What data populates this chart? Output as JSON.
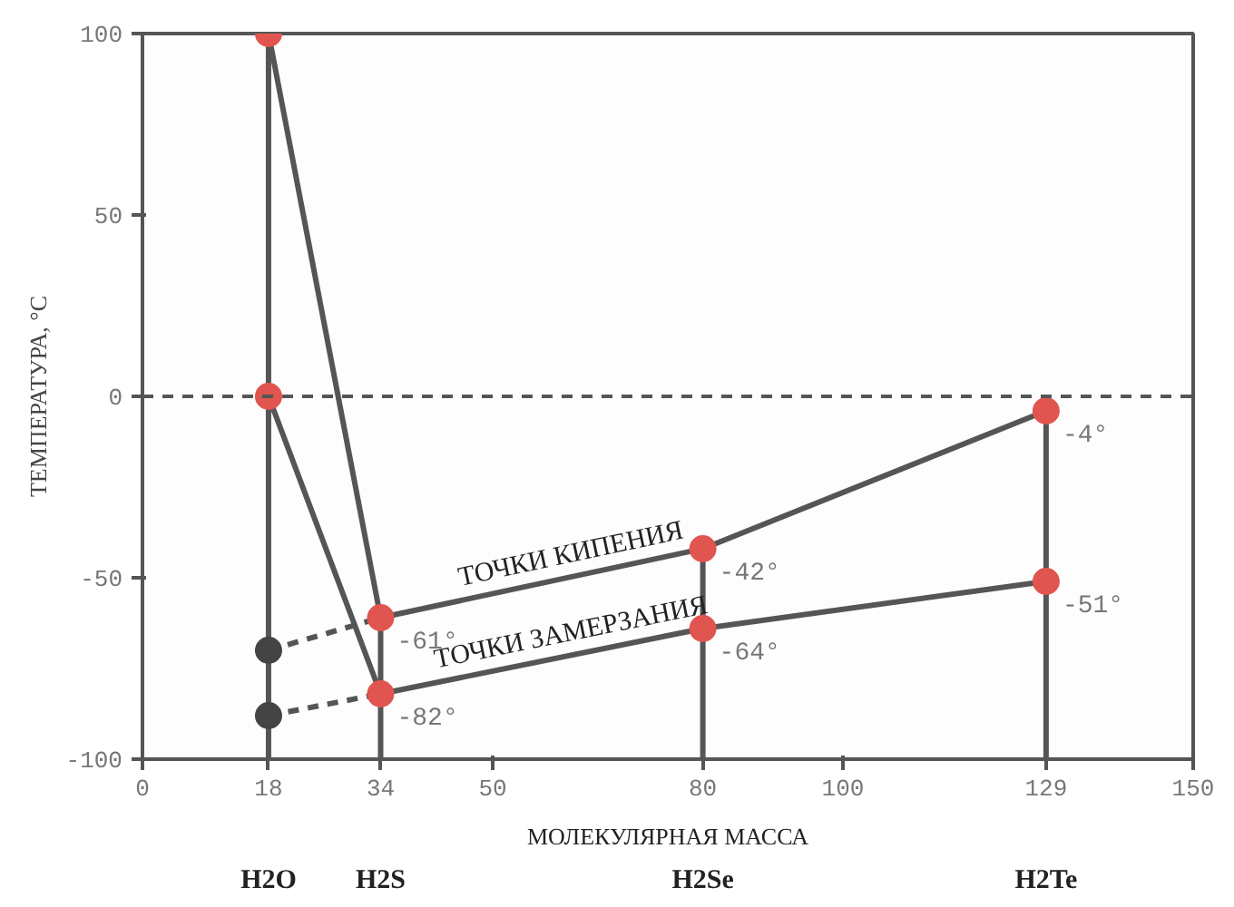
{
  "chart_data": {
    "type": "line",
    "xlabel": "МОЛЕКУЛЯРНАЯ МАССА",
    "ylabel": "ТЕМПЕРАТУРА, °C",
    "xlim": [
      0,
      150
    ],
    "xticks": [
      0,
      18,
      34,
      50,
      80,
      100,
      129,
      150
    ],
    "ylim": [
      -100,
      100
    ],
    "yticks": [
      -100,
      -50,
      0,
      50,
      100
    ],
    "marker": "circle",
    "series": [
      {
        "x": [
          18,
          18
        ],
        "values": [
          -100,
          100
        ],
        "color": "#555555",
        "marker": "none"
      },
      {
        "x": [
          34,
          34
        ],
        "values": [
          -100,
          -61
        ],
        "color": "#555555",
        "marker": "none"
      },
      {
        "x": [
          80,
          80
        ],
        "values": [
          -100,
          -42
        ],
        "color": "#555555",
        "marker": "none"
      },
      {
        "x": [
          129,
          129
        ],
        "values": [
          -100,
          -4
        ],
        "color": "#555555",
        "marker": "none"
      },
      {
        "x": [
          18,
          34
        ],
        "values": [
          -70,
          -61
        ],
        "color": "#555555",
        "line_style": "dashed",
        "colors": [
          "#444444",
          null
        ]
      },
      {
        "x": [
          18,
          34
        ],
        "values": [
          -88,
          -82
        ],
        "color": "#555555",
        "line_style": "dashed",
        "colors": [
          "#444444",
          null
        ]
      },
      {
        "name": "ТОЧКИ КИПЕНИЯ",
        "x": [
          18,
          34,
          80,
          129
        ],
        "values": [
          100,
          -61,
          -42,
          -4
        ],
        "color": "#555555",
        "colors": [
          "#e0554f",
          "#e0554f",
          "#e0554f",
          "#e0554f"
        ],
        "value_labels": [
          null,
          "-61°",
          "-42°",
          "-4°"
        ]
      },
      {
        "name": "ТОЧКИ ЗАМЕРЗАНИЯ",
        "x": [
          18,
          34,
          80,
          129
        ],
        "values": [
          0,
          -82,
          -64,
          -51
        ],
        "color": "#555555",
        "colors": [
          "#e0554f",
          "#e0554f",
          "#e0554f",
          "#e0554f"
        ],
        "value_labels": [
          null,
          "-82°",
          "-64°",
          "-51°"
        ]
      }
    ],
    "ref_lines": [
      {
        "axis": "y",
        "value": 0,
        "color": "#555555",
        "line_style": "dashed"
      }
    ],
    "annotations": [
      "H2O",
      "H2S",
      "H2Se",
      "H2Te"
    ]
  }
}
